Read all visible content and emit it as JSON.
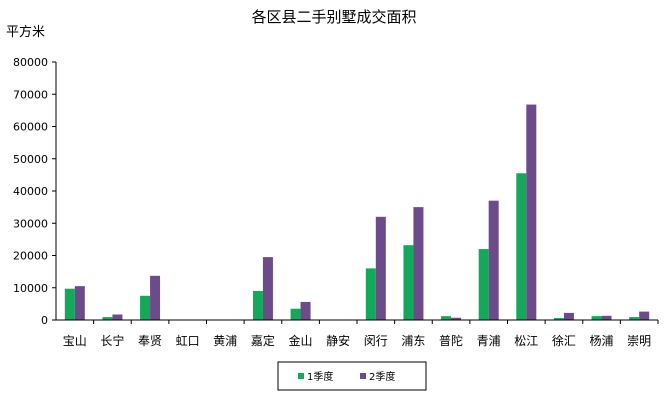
{
  "chart_data": {
    "type": "bar",
    "title": "各区县二手别墅成交面积",
    "ylabel": "平方米",
    "xlabel": "",
    "ylim": [
      0,
      80000
    ],
    "yticks": [
      0,
      10000,
      20000,
      30000,
      40000,
      50000,
      60000,
      70000,
      80000
    ],
    "grid": false,
    "legend_position": "bottom",
    "categories": [
      "宝山",
      "长宁",
      "奉贤",
      "虹口",
      "黄浦",
      "嘉定",
      "金山",
      "静安",
      "闵行",
      "浦东",
      "普陀",
      "青浦",
      "松江",
      "徐汇",
      "杨浦",
      "崇明"
    ],
    "series": [
      {
        "name": "1季度",
        "color": "#13a85a",
        "values": [
          9700,
          900,
          7500,
          0,
          0,
          9000,
          3500,
          0,
          16000,
          23200,
          1200,
          22000,
          45500,
          600,
          1200,
          900
        ]
      },
      {
        "name": "2季度",
        "color": "#6b4b8a",
        "values": [
          10500,
          1700,
          13700,
          0,
          0,
          19500,
          5600,
          0,
          32000,
          35000,
          700,
          37000,
          66800,
          2200,
          1300,
          2600
        ]
      }
    ]
  }
}
